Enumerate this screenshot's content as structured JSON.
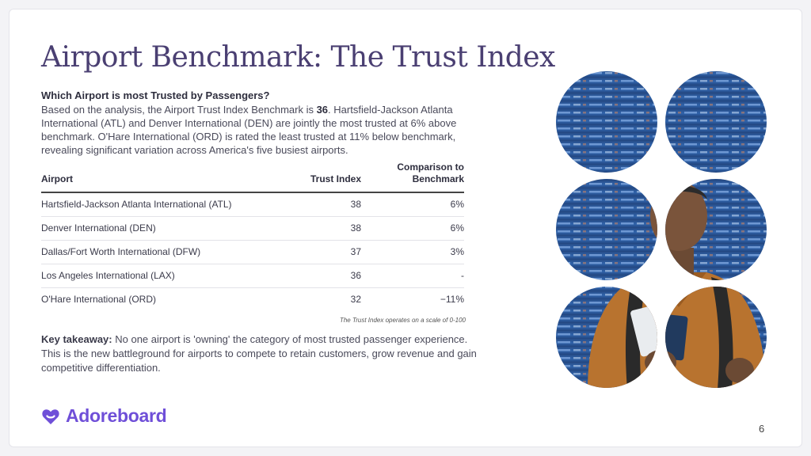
{
  "title": "Airport Benchmark: The Trust Index",
  "question": "Which Airport is most Trusted by Passengers?",
  "intro": {
    "before": "Based on the analysis, the Airport Trust Index Benchmark is ",
    "benchmark": "36",
    "after": ". Hartsfield-Jackson Atlanta International (ATL) and Denver International (DEN) are jointly the most trusted at 6% above benchmark. O'Hare International (ORD) is rated the least trusted at 11% below benchmark, revealing significant variation across America's five busiest airports."
  },
  "table": {
    "headers": {
      "airport": "Airport",
      "trust_index": "Trust Index",
      "comparison_line1": "Comparison to",
      "comparison_line2": "Benchmark"
    },
    "rows": [
      {
        "airport": "Hartsfield-Jackson Atlanta International (ATL)",
        "trust_index": "38",
        "comparison": "6%"
      },
      {
        "airport": "Denver International (DEN)",
        "trust_index": "38",
        "comparison": "6%"
      },
      {
        "airport": "Dallas/Fort Worth International (DFW)",
        "trust_index": "37",
        "comparison": "3%"
      },
      {
        "airport": "Los Angeles International (LAX)",
        "trust_index": "36",
        "comparison": "-"
      },
      {
        "airport": "O'Hare International (ORD)",
        "trust_index": "32",
        "comparison": "−11%"
      }
    ],
    "note": "The Trust Index operates on a scale of 0-100"
  },
  "takeaway": {
    "lead": "Key takeaway:",
    "text": " No one airport is 'owning' the category of most trusted passenger experience. This is the new battleground for airports to compete to retain customers, grow revenue and gain competitive differentiation."
  },
  "logo": {
    "text": "Adoreboard",
    "icon": "heart-logo-icon"
  },
  "page_number": "6",
  "colors": {
    "title": "#4a3f72",
    "brand": "#6f4fd8",
    "board_blue": "#2b5a9e"
  },
  "image": {
    "icon": "traveler-photo-collage"
  }
}
